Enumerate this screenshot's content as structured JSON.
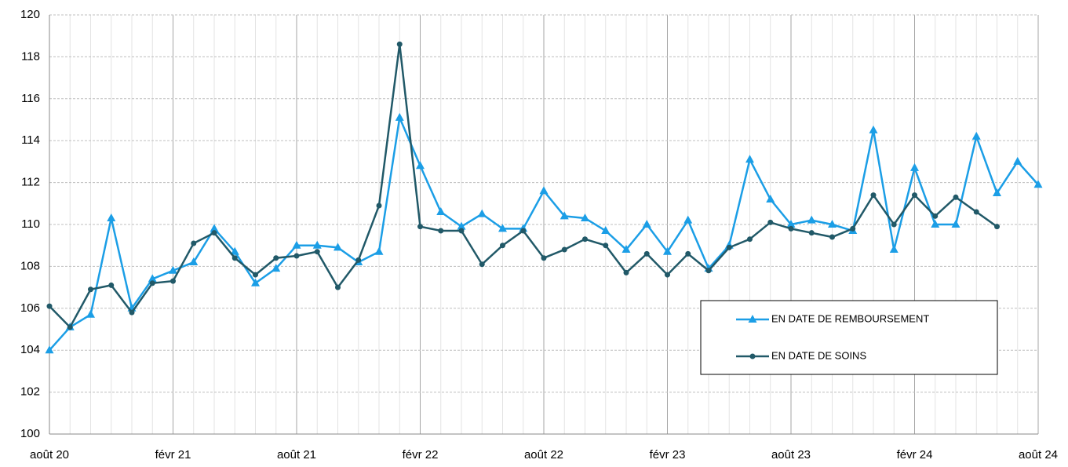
{
  "chart_data": {
    "type": "line",
    "categories": [
      "août 20",
      null,
      null,
      null,
      null,
      null,
      "févr 21",
      null,
      null,
      null,
      null,
      null,
      "août 21",
      null,
      null,
      null,
      null,
      null,
      "févr 22",
      null,
      null,
      null,
      null,
      null,
      "août 22",
      null,
      null,
      null,
      null,
      null,
      "févr 23",
      null,
      null,
      null,
      null,
      null,
      "août 23",
      null,
      null,
      null,
      null,
      null,
      "févr 24",
      null,
      null,
      null,
      null,
      null,
      "août 24"
    ],
    "series": [
      {
        "name": "EN DATE DE REMBOURSEMENT",
        "color": "#1b9ee6",
        "marker": "triangle",
        "values": [
          104.0,
          105.1,
          105.7,
          110.3,
          106.0,
          107.4,
          107.8,
          108.2,
          109.8,
          108.7,
          107.2,
          107.9,
          109.0,
          109.0,
          108.9,
          108.2,
          108.7,
          115.1,
          112.8,
          110.6,
          109.9,
          110.5,
          109.8,
          109.8,
          111.6,
          110.4,
          110.3,
          109.7,
          108.8,
          110.0,
          108.7,
          110.2,
          107.9,
          109.0,
          113.1,
          111.2,
          110.0,
          110.2,
          110.0,
          109.7,
          114.5,
          108.8,
          112.7,
          110.0,
          110.0,
          114.2,
          111.5,
          113.0,
          111.9
        ]
      },
      {
        "name": "EN DATE DE SOINS",
        "color": "#215968",
        "marker": "circle",
        "values": [
          106.1,
          105.1,
          106.9,
          107.1,
          105.8,
          107.2,
          107.3,
          109.1,
          109.6,
          108.4,
          107.6,
          108.4,
          108.5,
          108.7,
          107.0,
          108.3,
          110.9,
          118.6,
          109.9,
          109.7,
          109.7,
          108.1,
          109.0,
          109.7,
          108.4,
          108.8,
          109.3,
          109.0,
          107.7,
          108.6,
          107.6,
          108.6,
          107.8,
          108.9,
          109.3,
          110.1,
          109.8,
          109.6,
          109.4,
          109.8,
          111.4,
          110.0,
          111.4,
          110.4,
          111.3,
          110.6,
          109.9,
          null,
          null
        ]
      }
    ],
    "ylim": [
      100,
      120
    ],
    "yticks": [
      100,
      102,
      104,
      106,
      108,
      110,
      112,
      114,
      116,
      118,
      120
    ],
    "grid": true
  }
}
